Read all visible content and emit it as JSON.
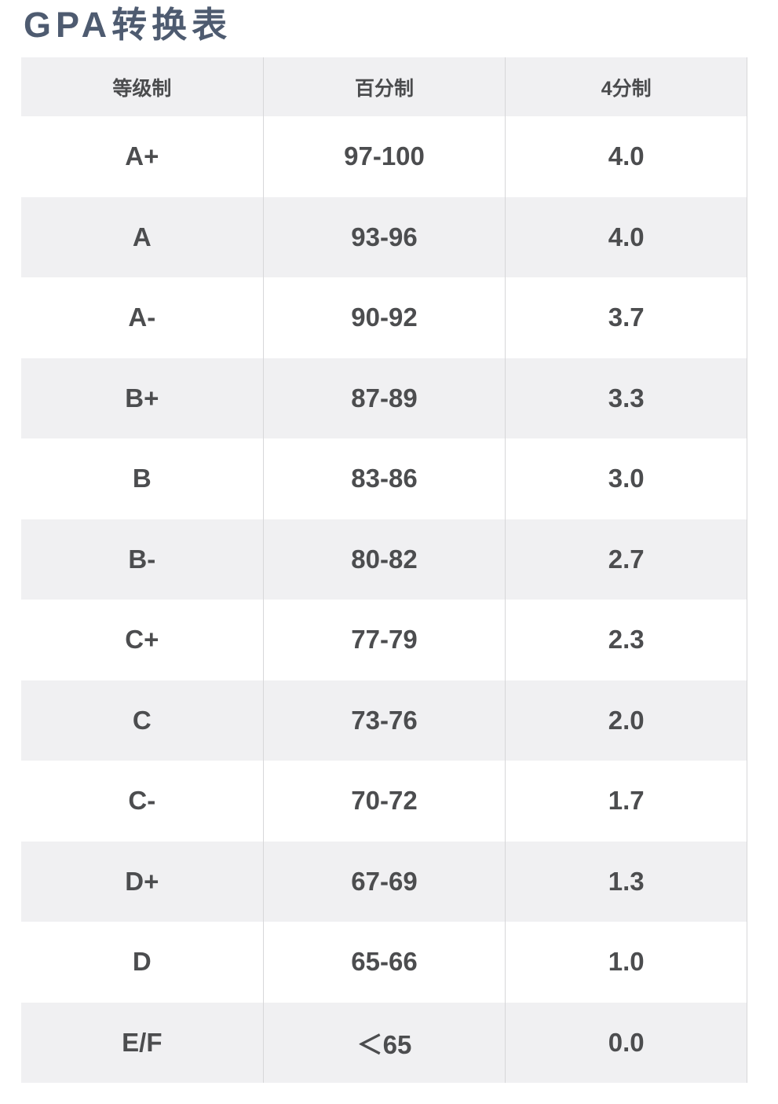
{
  "page": {
    "title": "GPA转换表",
    "background": "#ffffff"
  },
  "colors": {
    "title_text": "#4e5b70",
    "shaded_row_bg": "#f0f0f2",
    "cell_text": "#4c4d4f",
    "divider": "#d7d7d9"
  },
  "table": {
    "headers": [
      "等级制",
      "百分制",
      "4分制"
    ],
    "rows": [
      {
        "grade": "A+",
        "percent": "97-100",
        "gpa": "4.0"
      },
      {
        "grade": "A",
        "percent": "93-96",
        "gpa": "4.0"
      },
      {
        "grade": "A-",
        "percent": "90-92",
        "gpa": "3.7"
      },
      {
        "grade": "B+",
        "percent": "87-89",
        "gpa": "3.3"
      },
      {
        "grade": "B",
        "percent": "83-86",
        "gpa": "3.0"
      },
      {
        "grade": "B-",
        "percent": "80-82",
        "gpa": "2.7"
      },
      {
        "grade": "C+",
        "percent": "77-79",
        "gpa": "2.3"
      },
      {
        "grade": "C",
        "percent": "73-76",
        "gpa": "2.0"
      },
      {
        "grade": "C-",
        "percent": "70-72",
        "gpa": "1.7"
      },
      {
        "grade": "D+",
        "percent": "67-69",
        "gpa": "1.3"
      },
      {
        "grade": "D",
        "percent": "65-66",
        "gpa": "1.0"
      },
      {
        "grade": "E/F",
        "percent": "＜65",
        "gpa": "0.0"
      }
    ]
  }
}
